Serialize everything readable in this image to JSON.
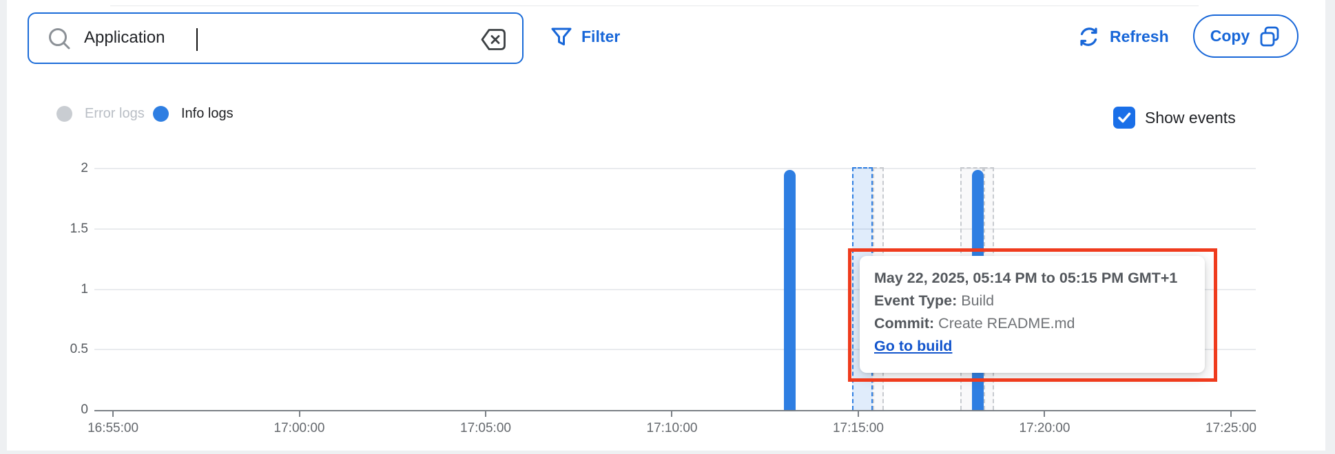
{
  "header": {
    "search": {
      "value": "Application",
      "placeholder": ""
    },
    "filter_label": "Filter",
    "refresh_label": "Refresh",
    "copy_label": "Copy"
  },
  "icons": {
    "search": "search-icon",
    "clear": "clear-backspace-icon",
    "filter": "funnel-icon",
    "refresh": "circular-arrows-icon",
    "copy": "copy-pages-icon",
    "checkbox": "checked-checkbox"
  },
  "legend": {
    "error": {
      "label": "Error logs",
      "color": "#c9cdd2",
      "active": false
    },
    "info": {
      "label": "Info logs",
      "color": "#2e7ee2",
      "active": true
    }
  },
  "show_events": {
    "label": "Show events",
    "checked": true
  },
  "tooltip": {
    "title": "May 22, 2025, 05:14 PM to 05:15 PM GMT+1",
    "rows": [
      {
        "label": "Event Type:",
        "value": "Build"
      },
      {
        "label": "Commit:",
        "value": "Create README.md"
      }
    ],
    "link": "Go to build"
  },
  "annotation": {
    "highlight_color": "#ef3b1d"
  },
  "chart_data": {
    "type": "bar",
    "title": "",
    "xlabel": "",
    "ylabel": "",
    "x_domain": [
      "16:54:30",
      "17:25:40"
    ],
    "x_ticks": [
      "16:55:00",
      "17:00:00",
      "17:05:00",
      "17:10:00",
      "17:15:00",
      "17:20:00",
      "17:25:00"
    ],
    "y_ticks": [
      0,
      0.5,
      1,
      1.5,
      2
    ],
    "ylim": [
      0,
      2
    ],
    "grid": true,
    "series": [
      {
        "name": "Info logs",
        "color": "#2e7ee2",
        "points": [
          {
            "time": "17:13:10",
            "value": 2
          },
          {
            "time": "17:18:12",
            "value": 2
          }
        ]
      },
      {
        "name": "Error logs",
        "color": "#c9cdd2",
        "points": []
      }
    ],
    "event_bands": [
      {
        "start": "17:14:50",
        "end": "17:15:23",
        "style": "highlighted",
        "type": "Build"
      },
      {
        "start": "17:15:23",
        "end": "17:15:41",
        "style": "normal",
        "type": "Build"
      },
      {
        "start": "17:17:44",
        "end": "17:18:22",
        "style": "normal",
        "type": "Build"
      },
      {
        "start": "17:18:22",
        "end": "17:18:38",
        "style": "normal",
        "type": "Build"
      }
    ]
  }
}
